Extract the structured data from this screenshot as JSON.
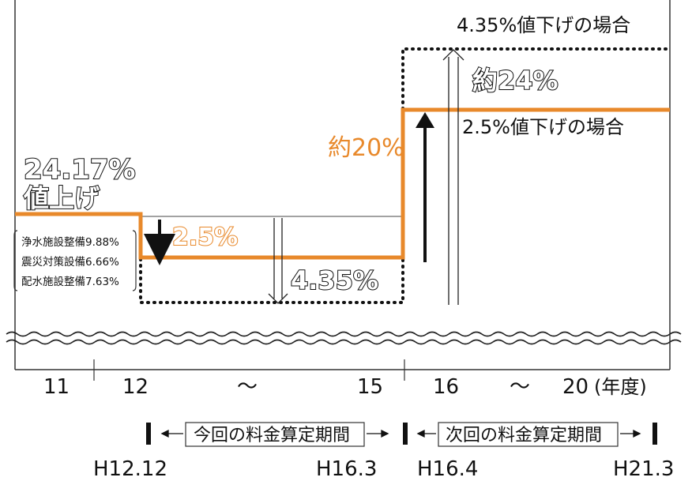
{
  "colors": {
    "accent": "#e8892b",
    "line": "#111111",
    "background": "#ffffff"
  },
  "labels": {
    "case_435": "4.35%値下げの場合",
    "about_24": "約24%",
    "case_25": "2.5%値下げの場合",
    "about_20": "約20%",
    "increase_pct": "24.17%",
    "increase_word": "値上げ",
    "drop_25": "2.5%",
    "drop_435": "4.35%",
    "breakdown": [
      "浄水施設整備9.88%",
      "震災対策設備6.66%",
      "配水施設整備7.63%"
    ]
  },
  "axis": {
    "ticks": [
      "11",
      "12",
      "～",
      "15",
      "16",
      "～",
      "20",
      "(年度)"
    ]
  },
  "periods": {
    "current": "今回の料金算定期間",
    "next": "次回の料金算定期間",
    "dates": [
      "H12.12",
      "H16.3",
      "H16.4",
      "H21.3"
    ]
  }
}
